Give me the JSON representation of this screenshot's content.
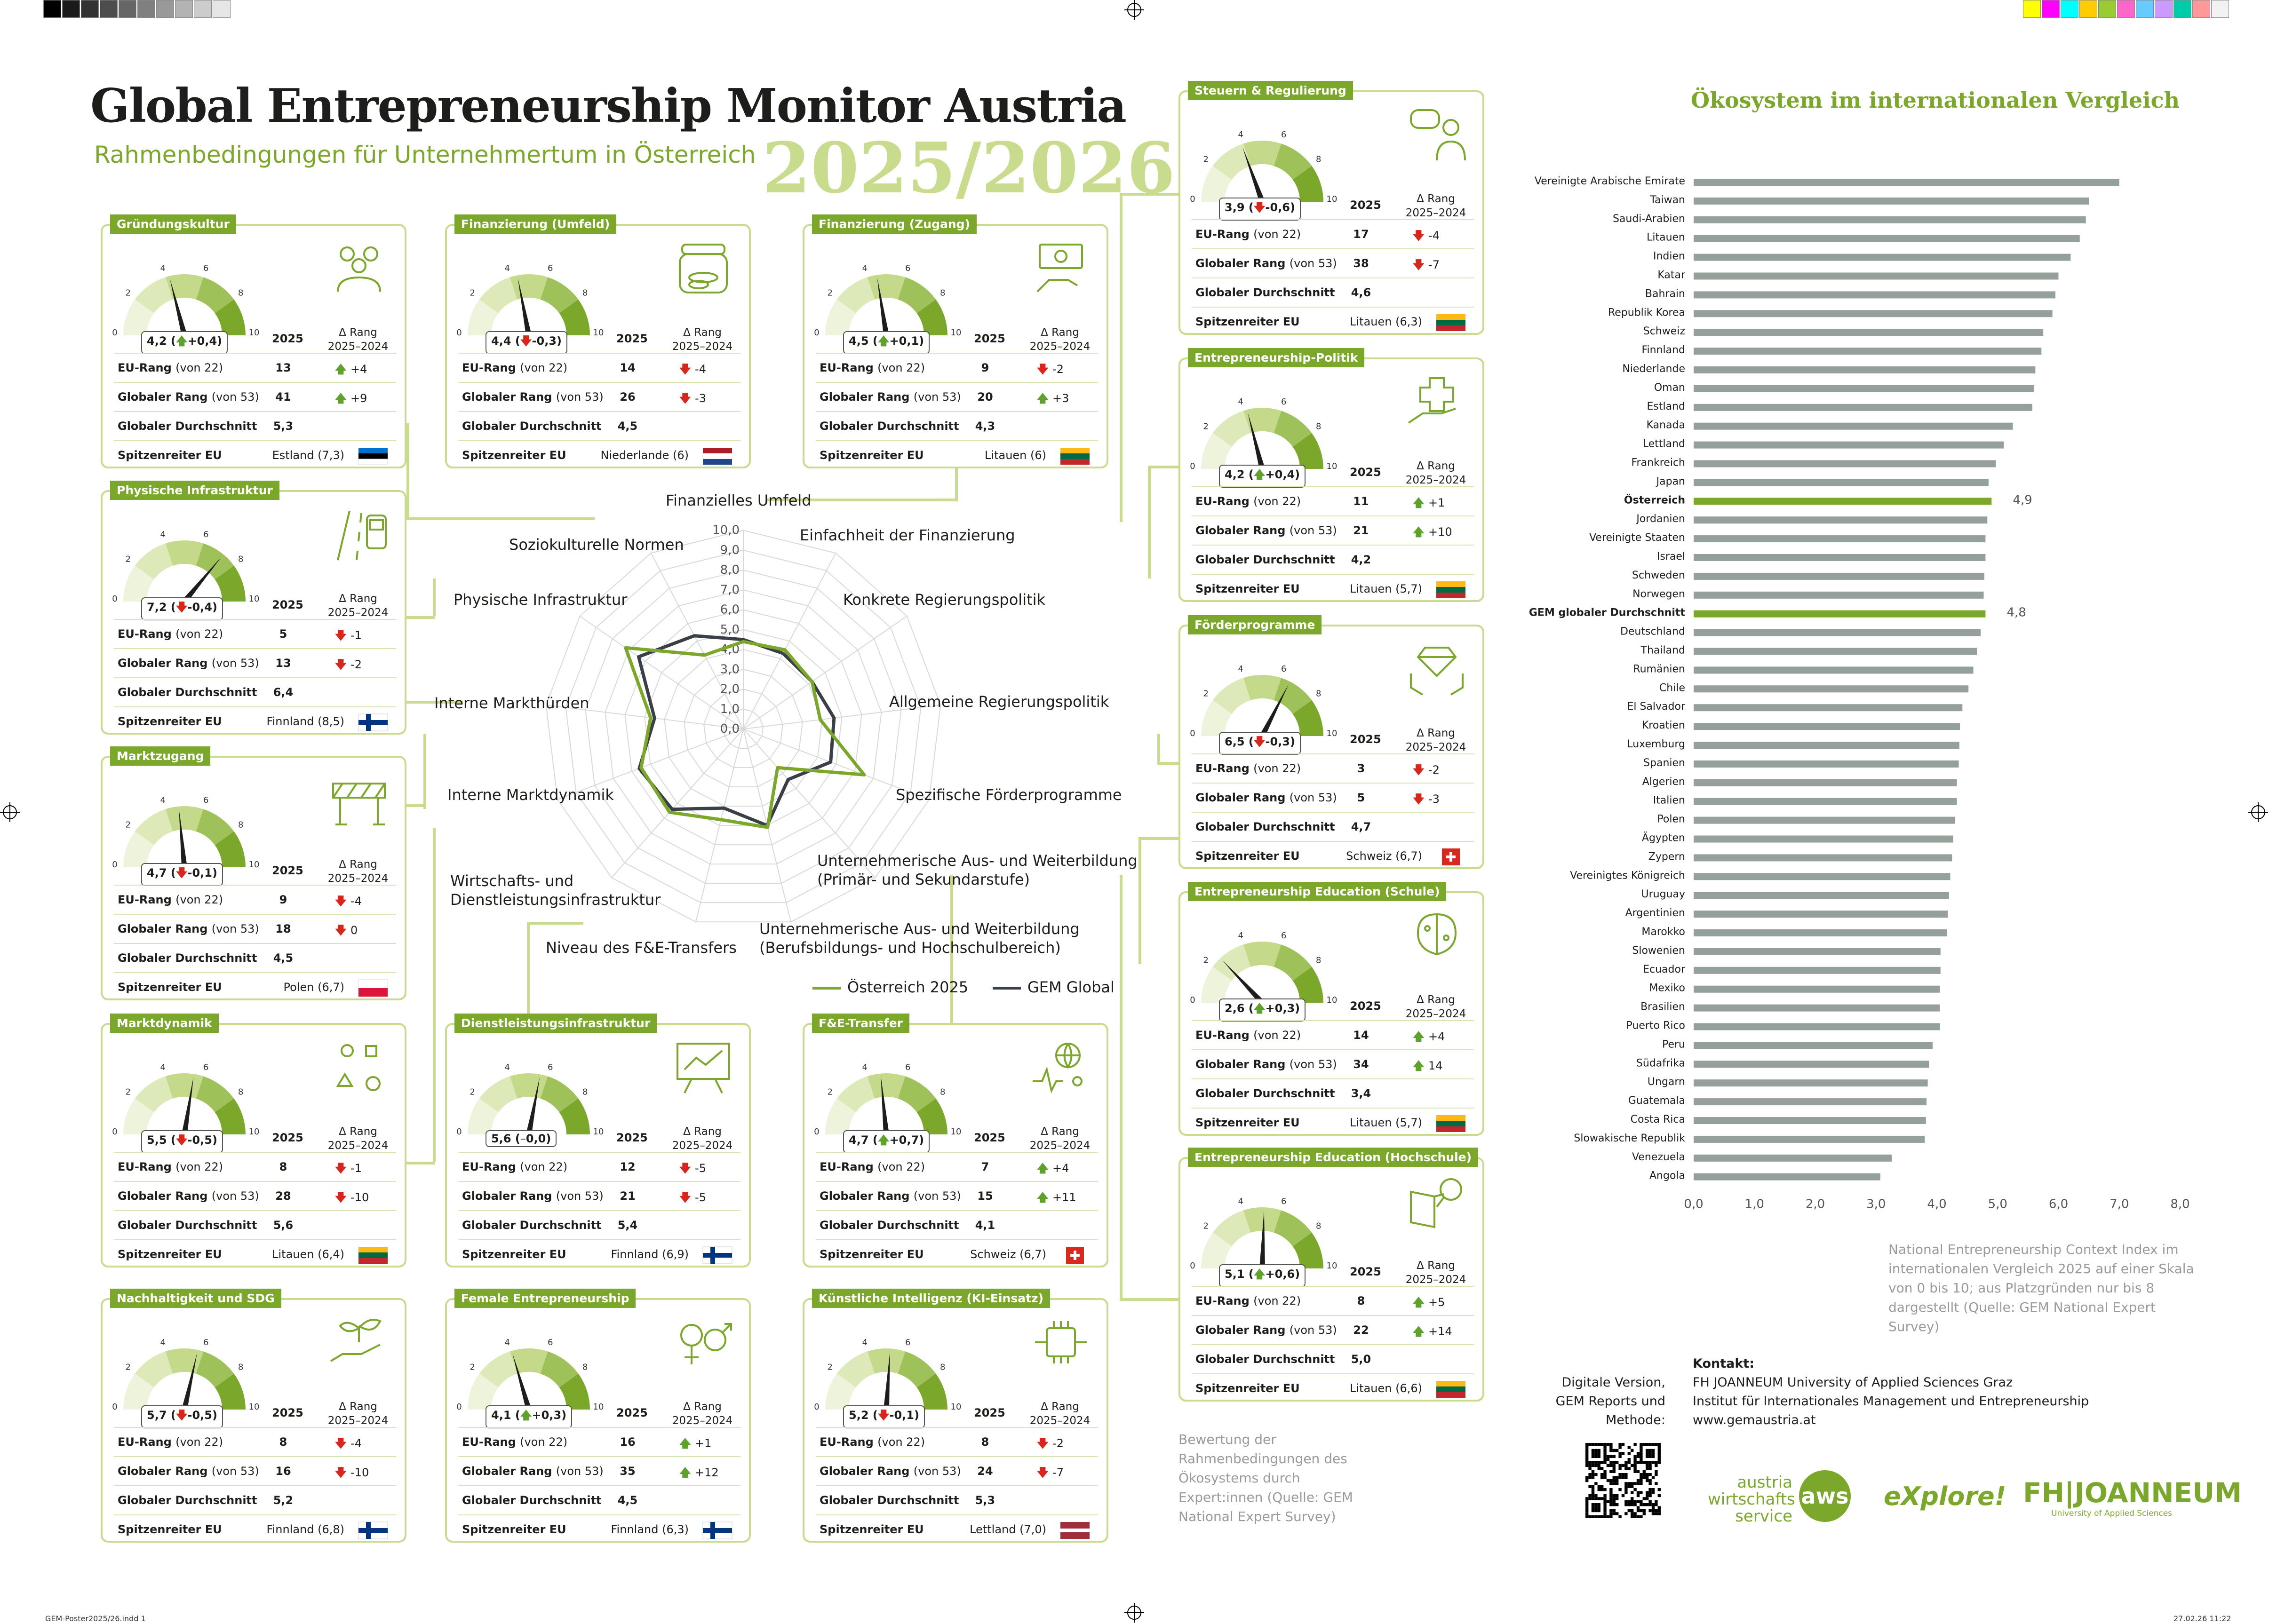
{
  "header": {
    "title": "Global Entrepreneurship Monitor Austria",
    "subtitle": "Rahmenbedingungen für Unternehmertum in Österreich",
    "year": "2025/2026"
  },
  "card_common": {
    "year_label": "2025",
    "delta_header": "Δ Rang\n2025–2024",
    "row_eu": "EU-Rang",
    "row_eu_sub": "(von 22)",
    "row_global": "Globaler Rang",
    "row_global_sub": "(von 53)",
    "row_avg": "Globaler Durchschnitt",
    "row_leader": "Spitzenreiter EU",
    "gauge_ticks": [
      "0",
      "2",
      "4",
      "6",
      "8",
      "10"
    ]
  },
  "cards": [
    {
      "title": "Gründungskultur",
      "icon": "people-group-icon",
      "score": 4.2,
      "score_label": "4,2 (",
      "change": "+0,4",
      "change_dir": "up",
      "eu_rank": "13",
      "eu_delta": "+4",
      "eu_dir": "up",
      "global_rank": "41",
      "global_delta": "+9",
      "global_dir": "up",
      "avg": "5,3",
      "leader": "Estland (7,3)",
      "flag": "estonia-flag"
    },
    {
      "title": "Finanzierung (Umfeld)",
      "icon": "coin-jar-icon",
      "score": 4.4,
      "score_label": "4,4 (",
      "change": "-0,3",
      "change_dir": "down",
      "eu_rank": "14",
      "eu_delta": "-4",
      "eu_dir": "down",
      "global_rank": "26",
      "global_delta": "-3",
      "global_dir": "down",
      "avg": "4,5",
      "leader": "Niederlande (6)",
      "flag": "netherlands-flag"
    },
    {
      "title": "Finanzierung (Zugang)",
      "icon": "money-hand-icon",
      "score": 4.5,
      "score_label": "4,5 (",
      "change": "+0,1",
      "change_dir": "up",
      "eu_rank": "9",
      "eu_delta": "-2",
      "eu_dir": "down",
      "global_rank": "20",
      "global_delta": "+3",
      "global_dir": "up",
      "avg": "4,3",
      "leader": "Litauen (6)",
      "flag": "lithuania-flag"
    },
    {
      "title": "Steuern & Regulierung",
      "icon": "speech-person-icon",
      "score": 3.9,
      "score_label": "3,9 (",
      "change": "-0,6",
      "change_dir": "down",
      "eu_rank": "17",
      "eu_delta": "-4",
      "eu_dir": "down",
      "global_rank": "38",
      "global_delta": "-7",
      "global_dir": "down",
      "avg": "4,6",
      "leader": "Litauen (6,3)",
      "flag": "lithuania-flag"
    },
    {
      "title": "Physische Infrastruktur",
      "icon": "road-bus-icon",
      "score": 7.2,
      "score_label": "7,2 (",
      "change": "-0,4",
      "change_dir": "down",
      "eu_rank": "5",
      "eu_delta": "-1",
      "eu_dir": "down",
      "global_rank": "13",
      "global_delta": "-2",
      "global_dir": "down",
      "avg": "6,4",
      "leader": "Finnland (8,5)",
      "flag": "finland-flag"
    },
    {
      "title": "Entrepreneurship-Politik",
      "icon": "puzzle-hand-icon",
      "score": 4.2,
      "score_label": "4,2 (",
      "change": "+0,4",
      "change_dir": "up",
      "eu_rank": "11",
      "eu_delta": "+1",
      "eu_dir": "up",
      "global_rank": "21",
      "global_delta": "+10",
      "global_dir": "up",
      "avg": "4,2",
      "leader": "Litauen (5,7)",
      "flag": "lithuania-flag"
    },
    {
      "title": "Marktzugang",
      "icon": "barrier-icon",
      "score": 4.7,
      "score_label": "4,7 (",
      "change": "-0,1",
      "change_dir": "down",
      "eu_rank": "9",
      "eu_delta": "-4",
      "eu_dir": "down",
      "global_rank": "18",
      "global_delta": "0",
      "global_dir": "down",
      "avg": "4,5",
      "leader": "Polen (6,7)",
      "flag": "poland-flag"
    },
    {
      "title": "Förderprogramme",
      "icon": "diamond-hands-icon",
      "score": 6.5,
      "score_label": "6,5 (",
      "change": "-0,3",
      "change_dir": "down",
      "eu_rank": "3",
      "eu_delta": "-2",
      "eu_dir": "down",
      "global_rank": "5",
      "global_delta": "-3",
      "global_dir": "down",
      "avg": "4,7",
      "leader": "Schweiz (6,7)",
      "flag": "switzerland-flag"
    },
    {
      "title": "Entrepreneurship Education (Schule)",
      "icon": "brain-icon",
      "score": 2.6,
      "score_label": "2,6 (",
      "change": "+0,3",
      "change_dir": "up",
      "eu_rank": "14",
      "eu_delta": "+4",
      "eu_dir": "up",
      "global_rank": "34",
      "global_delta": "14",
      "global_dir": "up",
      "avg": "3,4",
      "leader": "Litauen (5,7)",
      "flag": "lithuania-flag"
    },
    {
      "title": "Marktdynamik",
      "icon": "shapes-icon",
      "score": 5.5,
      "score_label": "5,5 (",
      "change": "-0,5",
      "change_dir": "down",
      "eu_rank": "8",
      "eu_delta": "-1",
      "eu_dir": "down",
      "global_rank": "28",
      "global_delta": "-10",
      "global_dir": "down",
      "avg": "5,6",
      "leader": "Litauen (6,4)",
      "flag": "lithuania-flag"
    },
    {
      "title": "Dienstleistungsinfrastruktur",
      "icon": "presentation-board-icon",
      "score": 5.6,
      "score_label": "5,6 (",
      "change": "0,0",
      "change_dir": "neutral",
      "eu_rank": "12",
      "eu_delta": "-5",
      "eu_dir": "down",
      "global_rank": "21",
      "global_delta": "-5",
      "global_dir": "down",
      "avg": "5,4",
      "leader": "Finnland (6,9)",
      "flag": "finland-flag"
    },
    {
      "title": "F&E-Transfer",
      "icon": "globe-people-icon",
      "score": 4.7,
      "score_label": "4,7 (",
      "change": "+0,7",
      "change_dir": "up",
      "eu_rank": "7",
      "eu_delta": "+4",
      "eu_dir": "up",
      "global_rank": "15",
      "global_delta": "+11",
      "global_dir": "up",
      "avg": "4,1",
      "leader": "Schweiz (6,7)",
      "flag": "switzerland-flag"
    },
    {
      "title": "Entrepreneurship Education (Hochschule)",
      "icon": "book-magnifier-icon",
      "score": 5.1,
      "score_label": "5,1 (",
      "change": "+0,6",
      "change_dir": "up",
      "eu_rank": "8",
      "eu_delta": "+5",
      "eu_dir": "up",
      "global_rank": "22",
      "global_delta": "+14",
      "global_dir": "up",
      "avg": "5,0",
      "leader": "Litauen (6,6)",
      "flag": "lithuania-flag"
    },
    {
      "title": "Nachhaltigkeit und SDG",
      "icon": "plant-hand-icon",
      "score": 5.7,
      "score_label": "5,7 (",
      "change": "-0,5",
      "change_dir": "down",
      "eu_rank": "8",
      "eu_delta": "-4",
      "eu_dir": "down",
      "global_rank": "16",
      "global_delta": "-10",
      "global_dir": "down",
      "avg": "5,2",
      "leader": "Finnland (6,8)",
      "flag": "finland-flag"
    },
    {
      "title": "Female Entrepreneurship",
      "icon": "gender-symbols-icon",
      "score": 4.1,
      "score_label": "4,1 (",
      "change": "+0,3",
      "change_dir": "up",
      "eu_rank": "16",
      "eu_delta": "+1",
      "eu_dir": "up",
      "global_rank": "35",
      "global_delta": "+12",
      "global_dir": "up",
      "avg": "4,5",
      "leader": "Finnland (6,3)",
      "flag": "finland-flag"
    },
    {
      "title": "Künstliche Intelligenz (KI-Einsatz)",
      "icon": "ai-chip-icon",
      "score": 5.2,
      "score_label": "5,2 (",
      "change": "-0,1",
      "change_dir": "down",
      "eu_rank": "8",
      "eu_delta": "-2",
      "eu_dir": "down",
      "global_rank": "24",
      "global_delta": "-7",
      "global_dir": "down",
      "avg": "5,3",
      "leader": "Lettland (7,0)",
      "flag": "latvia-flag"
    }
  ],
  "chart_data": [
    {
      "type": "radar",
      "title": "",
      "axis_ticks": [
        "0,0",
        "1,0",
        "2,0",
        "3,0",
        "4,0",
        "5,0",
        "6,0",
        "7,0",
        "8,0",
        "9,0",
        "10,0"
      ],
      "categories": [
        "Finanzielles Umfeld",
        "Einfachheit der Finanzierung",
        "Konkrete Regierungspolitik",
        "Allgemeine Regierungspolitik",
        "Spezifische Förderprogramme",
        "Unternehmerische Aus- und Weiterbildung\n(Primär- und Sekundarstufe)",
        "Unternehmerische Aus- und Weiterbildung\n(Berufsbildungs- und Hochschulbereich)",
        "Niveau des F&E-Transfers",
        "Wirtschafts- und\nDienstleistungsinfrastruktur",
        "Interne Marktdynamik",
        "Interne Markthürden",
        "Physische Infrastruktur",
        "Soziokulturelle Normen"
      ],
      "series": [
        {
          "name": "Österreich 2025",
          "color": "#7ba82a",
          "values": [
            4.4,
            4.5,
            4.2,
            3.9,
            6.5,
            2.6,
            5.1,
            4.7,
            5.6,
            5.5,
            4.7,
            7.2,
            4.2
          ]
        },
        {
          "name": "GEM Global",
          "color": "#3b3f48",
          "values": [
            4.5,
            4.3,
            4.2,
            4.6,
            4.7,
            3.4,
            5.0,
            4.1,
            5.4,
            5.6,
            4.5,
            6.4,
            5.3
          ]
        }
      ],
      "ylim": [
        0,
        10
      ]
    },
    {
      "type": "bar",
      "orientation": "horizontal",
      "title": "Ökosystem im internationalen Vergleich",
      "categories": [
        "Vereinigte Arabische Emirate",
        "Taiwan",
        "Saudi-Arabien",
        "Litauen",
        "Indien",
        "Katar",
        "Bahrain",
        "Republik Korea",
        "Schweiz",
        "Finnland",
        "Niederlande",
        "Oman",
        "Estland",
        "Kanada",
        "Lettland",
        "Frankreich",
        "Japan",
        "Österreich",
        "Jordanien",
        "Vereinigte Staaten",
        "Israel",
        "Schweden",
        "Norwegen",
        "GEM globaler Durchschnitt",
        "Deutschland",
        "Thailand",
        "Rumänien",
        "Chile",
        "El Salvador",
        "Kroatien",
        "Luxemburg",
        "Spanien",
        "Algerien",
        "Italien",
        "Polen",
        "Ägypten",
        "Zypern",
        "Vereinigtes Königreich",
        "Uruguay",
        "Argentinien",
        "Marokko",
        "Slowenien",
        "Ecuador",
        "Mexiko",
        "Brasilien",
        "Puerto Rico",
        "Peru",
        "Südafrika",
        "Ungarn",
        "Guatemala",
        "Costa Rica",
        "Slowakische Republik",
        "Venezuela",
        "Angola"
      ],
      "values": [
        7.0,
        6.5,
        6.45,
        6.35,
        6.2,
        6.0,
        5.95,
        5.9,
        5.75,
        5.72,
        5.62,
        5.6,
        5.57,
        5.25,
        5.1,
        4.97,
        4.85,
        4.9,
        4.83,
        4.8,
        4.8,
        4.78,
        4.77,
        4.8,
        4.72,
        4.66,
        4.6,
        4.52,
        4.42,
        4.38,
        4.37,
        4.36,
        4.33,
        4.33,
        4.3,
        4.27,
        4.25,
        4.22,
        4.2,
        4.18,
        4.17,
        4.06,
        4.06,
        4.05,
        4.05,
        4.05,
        3.93,
        3.87,
        3.85,
        3.83,
        3.82,
        3.8,
        3.26,
        3.07
      ],
      "highlight": {
        "Österreich": "4,9",
        "GEM globaler Durchschnitt": "4,8"
      },
      "xticks": [
        "0,0",
        "1,0",
        "2,0",
        "3,0",
        "4,0",
        "5,0",
        "6,0",
        "7,0",
        "8,0"
      ],
      "xlim": [
        0,
        8
      ],
      "bar_color": "#95a09a",
      "highlight_color": "#7ba82a"
    }
  ],
  "legend": {
    "austria": "Österreich 2025",
    "global": "GEM Global"
  },
  "notes": {
    "bar_note": "National Entrepreneurship Context Index im internationalen Vergleich 2025 auf einer Skala von 0 bis 10; aus Platzgründen nur bis 8 dargestellt (Quelle: GEM National Expert Survey)",
    "card_note": "Bewertung der Rahmenbedingungen des Ökosystems durch Expert:innen (Quelle: GEM National Expert Survey)"
  },
  "contact": {
    "heading": "Kontakt:",
    "line1": "FH JOANNEUM University of Applied Sciences Graz",
    "line2": "Institut für Internationales Management und Entrepreneurship",
    "line3": "www.gemaustria.at",
    "digital": "Digitale Version, GEM Reports und Methode:"
  },
  "logos": {
    "aws_text": "austria wirtschafts service",
    "aws_badge": "aws",
    "explore": "eXplore!",
    "fh": "FH|JOANNEUM",
    "fh_sub": "University of Applied Sciences"
  },
  "footer": {
    "left": "GEM-Poster2025/26.indd   1",
    "right": "27.02.26   11:22"
  },
  "colors": {
    "accent": "#7ba82a",
    "light": "#c9dc8e",
    "dark": "#3b3f48",
    "bar": "#95a09a"
  }
}
